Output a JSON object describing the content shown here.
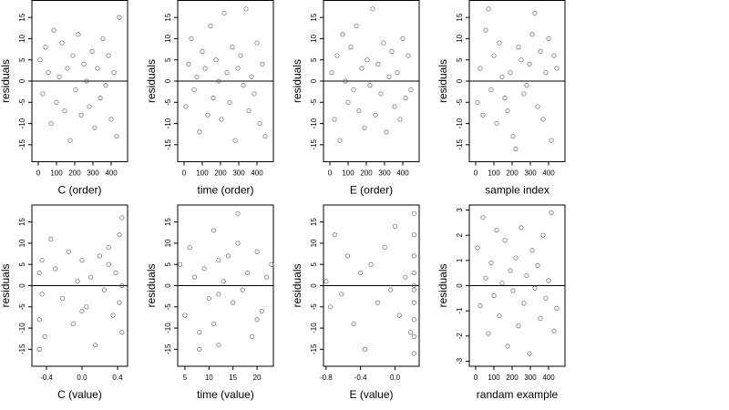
{
  "chart_data": [
    {
      "type": "scatter",
      "x_label": "C (order)",
      "y_label": "residuals",
      "marker_color": "#4d4d4d",
      "reference_line": 0,
      "xlim": [
        -35,
        490
      ],
      "ylim": [
        -19,
        19
      ],
      "xticks": [
        0,
        100,
        200,
        300,
        400
      ],
      "yticks": [
        -15,
        -10,
        -5,
        0,
        5,
        10,
        15
      ],
      "x": [
        10,
        25,
        40,
        55,
        70,
        85,
        100,
        115,
        130,
        145,
        160,
        175,
        190,
        205,
        220,
        235,
        250,
        265,
        280,
        295,
        310,
        325,
        340,
        355,
        370,
        385,
        400,
        415,
        430,
        445
      ],
      "y": [
        5,
        -3,
        8,
        2,
        -10,
        12,
        -5,
        1,
        9,
        -7,
        3,
        -14,
        6,
        -2,
        11,
        -8,
        4,
        0,
        -6,
        7,
        -11,
        3,
        -4,
        10,
        -1,
        6,
        -9,
        2,
        -13,
        15
      ]
    },
    {
      "type": "scatter",
      "x_label": "time (order)",
      "y_label": "residuals",
      "marker_color": "#4d4d4d",
      "reference_line": 0,
      "xlim": [
        -35,
        490
      ],
      "ylim": [
        -19,
        19
      ],
      "xticks": [
        0,
        100,
        200,
        300,
        400
      ],
      "yticks": [
        -15,
        -10,
        -5,
        0,
        5,
        10,
        15
      ],
      "x": [
        10,
        25,
        40,
        55,
        70,
        85,
        100,
        115,
        130,
        145,
        160,
        175,
        190,
        205,
        220,
        235,
        250,
        265,
        280,
        295,
        310,
        325,
        340,
        355,
        370,
        385,
        400,
        415,
        430,
        445
      ],
      "y": [
        -6,
        4,
        10,
        -2,
        1,
        -12,
        7,
        3,
        -8,
        13,
        -4,
        5,
        0,
        -9,
        16,
        2,
        -5,
        8,
        -14,
        3,
        6,
        -1,
        17,
        -7,
        1,
        -3,
        9,
        -10,
        4,
        -13
      ]
    },
    {
      "type": "scatter",
      "x_label": "E (order)",
      "y_label": "residuals",
      "marker_color": "#4d4d4d",
      "reference_line": 0,
      "xlim": [
        -35,
        490
      ],
      "ylim": [
        -19,
        19
      ],
      "xticks": [
        0,
        100,
        200,
        300,
        400
      ],
      "yticks": [
        -15,
        -10,
        -5,
        0,
        5,
        10,
        15
      ],
      "x": [
        10,
        25,
        40,
        55,
        70,
        85,
        100,
        115,
        130,
        145,
        160,
        175,
        190,
        205,
        220,
        235,
        250,
        265,
        280,
        295,
        310,
        325,
        340,
        355,
        370,
        385,
        400,
        415,
        430,
        445
      ],
      "y": [
        2,
        -9,
        6,
        -14,
        11,
        0,
        -5,
        8,
        -2,
        13,
        -7,
        3,
        -11,
        5,
        -1,
        17,
        -8,
        4,
        -3,
        9,
        -12,
        1,
        7,
        -6,
        2,
        -9,
        10,
        -4,
        6,
        -2
      ]
    },
    {
      "type": "scatter",
      "x_label": "sample index",
      "y_label": "residuals",
      "marker_color": "#4d4d4d",
      "reference_line": 0,
      "xlim": [
        -35,
        490
      ],
      "ylim": [
        -19,
        19
      ],
      "xticks": [
        0,
        100,
        200,
        300,
        400
      ],
      "yticks": [
        -15,
        -10,
        -5,
        0,
        5,
        10,
        15
      ],
      "x": [
        10,
        25,
        40,
        55,
        70,
        85,
        100,
        115,
        130,
        145,
        160,
        175,
        190,
        205,
        220,
        235,
        250,
        265,
        280,
        295,
        310,
        325,
        340,
        355,
        370,
        385,
        400,
        415,
        430,
        445
      ],
      "y": [
        -5,
        3,
        -8,
        12,
        17,
        -2,
        6,
        -10,
        9,
        1,
        -4,
        -7,
        2,
        -13,
        -16,
        8,
        5,
        -3,
        -1,
        4,
        11,
        16,
        -6,
        7,
        -9,
        2,
        10,
        -14,
        6,
        3
      ]
    },
    {
      "type": "scatter",
      "x_label": "C (value)",
      "y_label": "residuals",
      "marker_color": "#4d4d4d",
      "reference_line": 0,
      "xlim": [
        -0.564,
        0.513
      ],
      "ylim": [
        -19,
        19
      ],
      "xticks": [
        -0.4,
        {
          "value": 0,
          "label": "0.0"
        },
        0.4
      ],
      "yticks": [
        -15,
        -10,
        -5,
        0,
        5,
        10,
        15
      ],
      "x": [
        -0.48,
        -0.48,
        -0.45,
        -0.45,
        -0.42,
        -0.35,
        -0.3,
        -0.22,
        -0.15,
        -0.1,
        -0.05,
        0.0,
        0.05,
        0.1,
        0.15,
        0.2,
        0.25,
        0.3,
        0.35,
        0.38,
        0.42,
        0.42,
        0.45,
        0.45,
        0.45,
        -0.48,
        0.0,
        0.3
      ],
      "y": [
        3,
        -8,
        6,
        -2,
        -12,
        11,
        4,
        -3,
        8,
        -9,
        1,
        6,
        -5,
        2,
        -14,
        7,
        -1,
        9,
        -7,
        3,
        12,
        -4,
        0,
        -11,
        16,
        -15,
        -6,
        5
      ]
    },
    {
      "type": "scatter",
      "x_label": "time (value)",
      "y_label": "residuals",
      "marker_color": "#4d4d4d",
      "reference_line": 0,
      "xlim": [
        3.5,
        23.4
      ],
      "ylim": [
        -19,
        19
      ],
      "xticks": [
        5,
        10,
        15,
        20
      ],
      "yticks": [
        -15,
        -10,
        -5,
        0,
        5,
        10,
        15
      ],
      "x": [
        4,
        5,
        6,
        7,
        8,
        9,
        10,
        11,
        11,
        12,
        12,
        13,
        14,
        15,
        16,
        17,
        18,
        19,
        20,
        21,
        22,
        23,
        12,
        16,
        8,
        20
      ],
      "y": [
        5,
        -7,
        9,
        2,
        -11,
        4,
        -3,
        13,
        -9,
        6,
        -14,
        1,
        7,
        -4,
        10,
        -1,
        3,
        -12,
        8,
        -6,
        2,
        5,
        -2,
        17,
        -15,
        -8
      ]
    },
    {
      "type": "scatter",
      "x_label": "E (value)",
      "y_label": "residuals",
      "marker_color": "#4d4d4d",
      "reference_line": 0,
      "xlim": [
        -0.83,
        0.28
      ],
      "ylim": [
        -19,
        19
      ],
      "xticks": [
        -0.8,
        -0.4,
        {
          "value": 0,
          "label": "0.0"
        }
      ],
      "yticks": [
        -15,
        -10,
        -5,
        0,
        5,
        10,
        15
      ],
      "x": [
        -0.8,
        -0.75,
        -0.7,
        -0.62,
        -0.55,
        -0.48,
        -0.4,
        -0.35,
        -0.28,
        -0.2,
        -0.12,
        -0.05,
        0.0,
        0.05,
        0.12,
        0.18,
        0.22,
        0.22,
        0.22,
        0.22,
        0.22,
        0.22,
        0.22,
        0.22,
        0.22,
        0.22
      ],
      "y": [
        1,
        -5,
        12,
        -2,
        7,
        -9,
        3,
        -15,
        5,
        -4,
        9,
        -1,
        14,
        -7,
        2,
        -11,
        17,
        12,
        7,
        3,
        -1,
        -4,
        -8,
        -12,
        -16,
        0
      ]
    },
    {
      "type": "scatter",
      "x_label": "randam example",
      "y_label": "residuals",
      "marker_color": "#4d4d4d",
      "reference_line": 0,
      "xlim": [
        -35,
        490
      ],
      "ylim": [
        -3.2,
        3.2
      ],
      "xticks": [
        0,
        100,
        200,
        300,
        400
      ],
      "yticks": [
        -3,
        -2,
        -1,
        0,
        1,
        2,
        3
      ],
      "x": [
        10,
        25,
        40,
        55,
        70,
        85,
        100,
        115,
        130,
        145,
        160,
        175,
        190,
        205,
        220,
        235,
        250,
        265,
        280,
        295,
        310,
        325,
        340,
        355,
        370,
        385,
        400,
        415,
        430,
        445
      ],
      "y": [
        1.5,
        -0.8,
        2.7,
        0.3,
        -1.9,
        0.9,
        -0.4,
        2.2,
        -1.2,
        0.1,
        1.8,
        -2.4,
        0.6,
        -0.2,
        1.1,
        -1.6,
        2.3,
        -0.7,
        0.4,
        -2.7,
        1.4,
        -0.1,
        0.8,
        -1.3,
        2.0,
        -0.5,
        0.2,
        2.9,
        -1.8,
        -0.9
      ]
    }
  ]
}
